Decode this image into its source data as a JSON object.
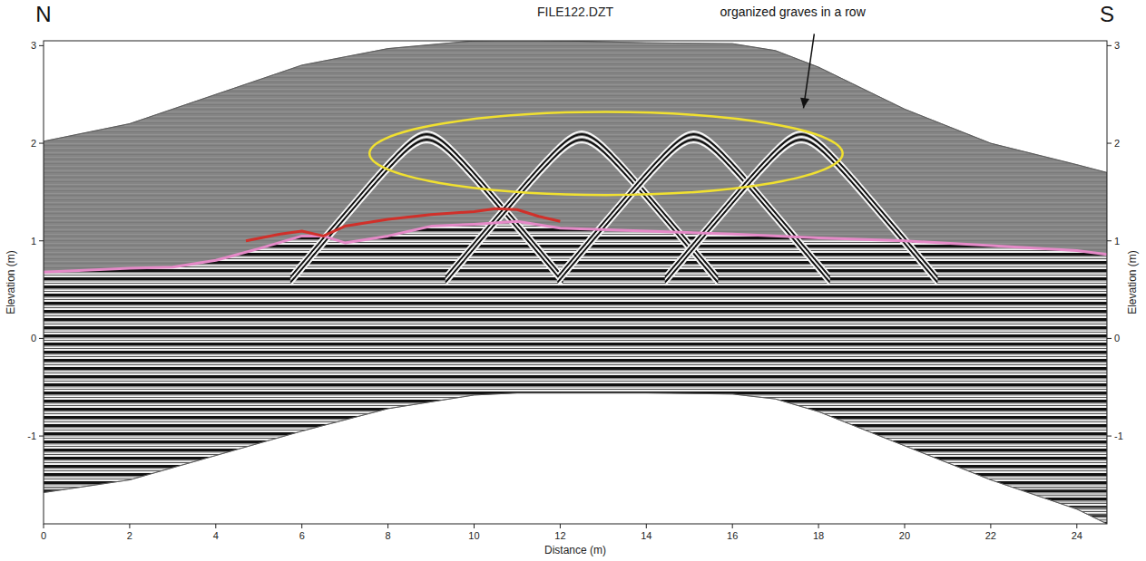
{
  "chart_data": {
    "type": "radargram",
    "title": "FILE122.DZT",
    "left_label": "N",
    "right_label": "S",
    "x_label": "Distance (m)",
    "y_label": "Elevation (m)",
    "y2_label": "Elevation (m)",
    "xlim": [
      0,
      24.7
    ],
    "ylim": [
      -1.9,
      3.05
    ],
    "y2lim": [
      -1.9,
      3.05
    ],
    "xticks": [
      0,
      2,
      4,
      6,
      8,
      10,
      12,
      14,
      16,
      18,
      20,
      22,
      24
    ],
    "yticks": [
      -1,
      0,
      1,
      2,
      3
    ],
    "y2ticks": [
      -1,
      0,
      1,
      2,
      3
    ],
    "surface": {
      "x": [
        0,
        2,
        4,
        6,
        8,
        10,
        11,
        12,
        14,
        16,
        17,
        18,
        20,
        22,
        24,
        24.7
      ],
      "values": [
        2.02,
        2.2,
        2.5,
        2.8,
        2.97,
        3.05,
        3.06,
        3.05,
        3.03,
        3.02,
        2.95,
        2.78,
        2.35,
        2.0,
        1.78,
        1.7
      ]
    },
    "bottom": {
      "x": [
        0,
        2,
        4,
        6,
        8,
        10,
        11,
        12,
        14,
        16,
        17,
        18,
        20,
        22,
        24,
        24.7
      ],
      "values": [
        -1.58,
        -1.45,
        -1.2,
        -0.95,
        -0.72,
        -0.58,
        -0.56,
        -0.56,
        -0.56,
        -0.57,
        -0.62,
        -0.75,
        -1.1,
        -1.45,
        -1.75,
        -1.9
      ]
    },
    "interface": {
      "color": "#e58ac8",
      "x": [
        0,
        2,
        3,
        4,
        5,
        6,
        6.5,
        7,
        8,
        9,
        10,
        11,
        12,
        14,
        16,
        18,
        20,
        22,
        24,
        24.7
      ],
      "values": [
        0.68,
        0.72,
        0.73,
        0.8,
        0.92,
        1.05,
        1.05,
        0.98,
        1.05,
        1.15,
        1.17,
        1.2,
        1.13,
        1.1,
        1.07,
        1.03,
        1.0,
        0.95,
        0.9,
        0.86
      ]
    },
    "upper_interface": {
      "color": "#d0302a",
      "x": [
        4.7,
        5.5,
        6,
        6.5,
        7,
        8,
        9,
        10,
        10.5,
        11,
        11.5,
        12
      ],
      "values": [
        1.0,
        1.07,
        1.1,
        1.05,
        1.15,
        1.22,
        1.27,
        1.3,
        1.33,
        1.32,
        1.25,
        1.2
      ]
    },
    "graves": {
      "x": [
        8.9,
        12.5,
        15.1,
        17.6
      ],
      "values": [
        2.12,
        2.12,
        2.12,
        2.12
      ]
    },
    "annotation": {
      "text": "organized graves in a row",
      "color": "#f0e030",
      "text_at": [
        17.4,
        3.3
      ],
      "arrow_from": [
        17.9,
        3.12
      ],
      "arrow_to": [
        17.65,
        2.36
      ],
      "ellipse_x": [
        7.57,
        18.56
      ],
      "ellipse_y": [
        1.47,
        2.32
      ]
    }
  }
}
